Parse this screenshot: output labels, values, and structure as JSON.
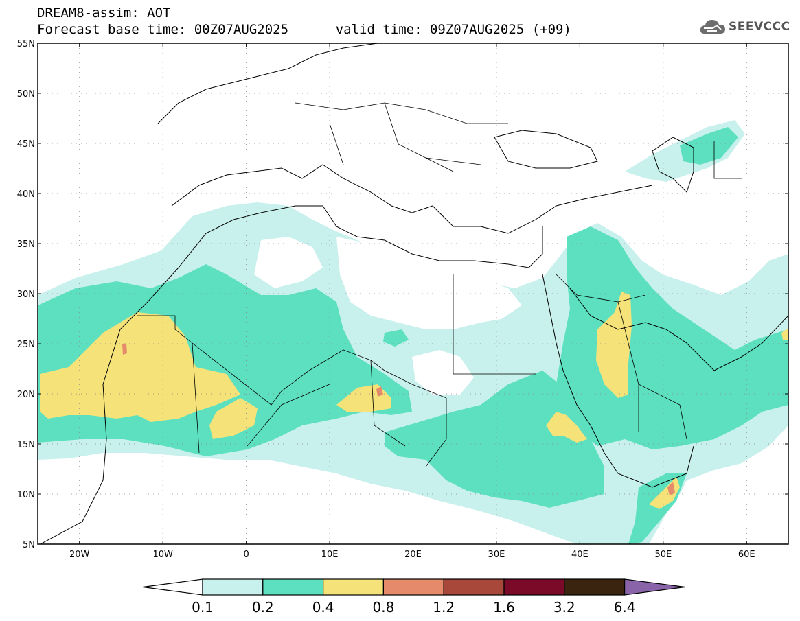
{
  "header": {
    "line1": "DREAM8-assim: AOT",
    "line2_base_label": "Forecast base time: ",
    "line2_base_value": "00Z07AUG2025",
    "line2_valid_label": "valid time: ",
    "line2_valid_value": "09Z07AUG2025 (+09)"
  },
  "logo": {
    "text": "SEEVCCC",
    "icon": "cloud-logo-icon"
  },
  "map": {
    "projection": "equirectangular",
    "lon_range": [
      -25,
      65
    ],
    "lat_range": [
      5,
      55
    ],
    "lat_ticks": [
      {
        "value": 55,
        "label": "55N"
      },
      {
        "value": 50,
        "label": "50N"
      },
      {
        "value": 45,
        "label": "45N"
      },
      {
        "value": 40,
        "label": "40N"
      },
      {
        "value": 35,
        "label": "35N"
      },
      {
        "value": 30,
        "label": "30N"
      },
      {
        "value": 25,
        "label": "25N"
      },
      {
        "value": 20,
        "label": "20N"
      },
      {
        "value": 15,
        "label": "15N"
      },
      {
        "value": 10,
        "label": "10N"
      },
      {
        "value": 5,
        "label": "5N"
      }
    ],
    "lon_ticks": [
      {
        "value": -20,
        "label": "20W"
      },
      {
        "value": -10,
        "label": "10W"
      },
      {
        "value": 0,
        "label": "0"
      },
      {
        "value": 10,
        "label": "10E"
      },
      {
        "value": 20,
        "label": "20E"
      },
      {
        "value": 30,
        "label": "30E"
      },
      {
        "value": 40,
        "label": "40E"
      },
      {
        "value": 50,
        "label": "50E"
      },
      {
        "value": 60,
        "label": "60E"
      }
    ],
    "grid": "dotted",
    "variable": "Aerosol optical thickness (AOT)",
    "fields": [
      {
        "level": "0.1-0.2",
        "color": "#c8f0ec",
        "areas": "broad dust plume band from Atlantic across Sahara, Sudan, Arabia, Caspian"
      },
      {
        "level": "0.2-0.4",
        "color": "#5ce0bf",
        "areas": "West Sahara, Sahel, Sudan, Arabian Peninsula"
      },
      {
        "level": "0.4-0.8",
        "color": "#f5e37a",
        "areas": "Western Sahara/Mauritania, Niger/Chad, central Arabia, Eritrea, Somalia"
      },
      {
        "level": "0.8-1.2",
        "color": "#e58b6b",
        "areas": "small spots Western Sahara, Chad, Somalia"
      }
    ]
  },
  "colorbar": {
    "colors": [
      "#ffffff",
      "#c8f0ec",
      "#5ce0bf",
      "#f5e37a",
      "#e58b6b",
      "#a8483a",
      "#7a0a28",
      "#3a2410",
      "#8a64a8"
    ],
    "labels": [
      "0.1",
      "0.2",
      "0.4",
      "0.8",
      "1.2",
      "1.6",
      "3.2",
      "6.4"
    ]
  }
}
